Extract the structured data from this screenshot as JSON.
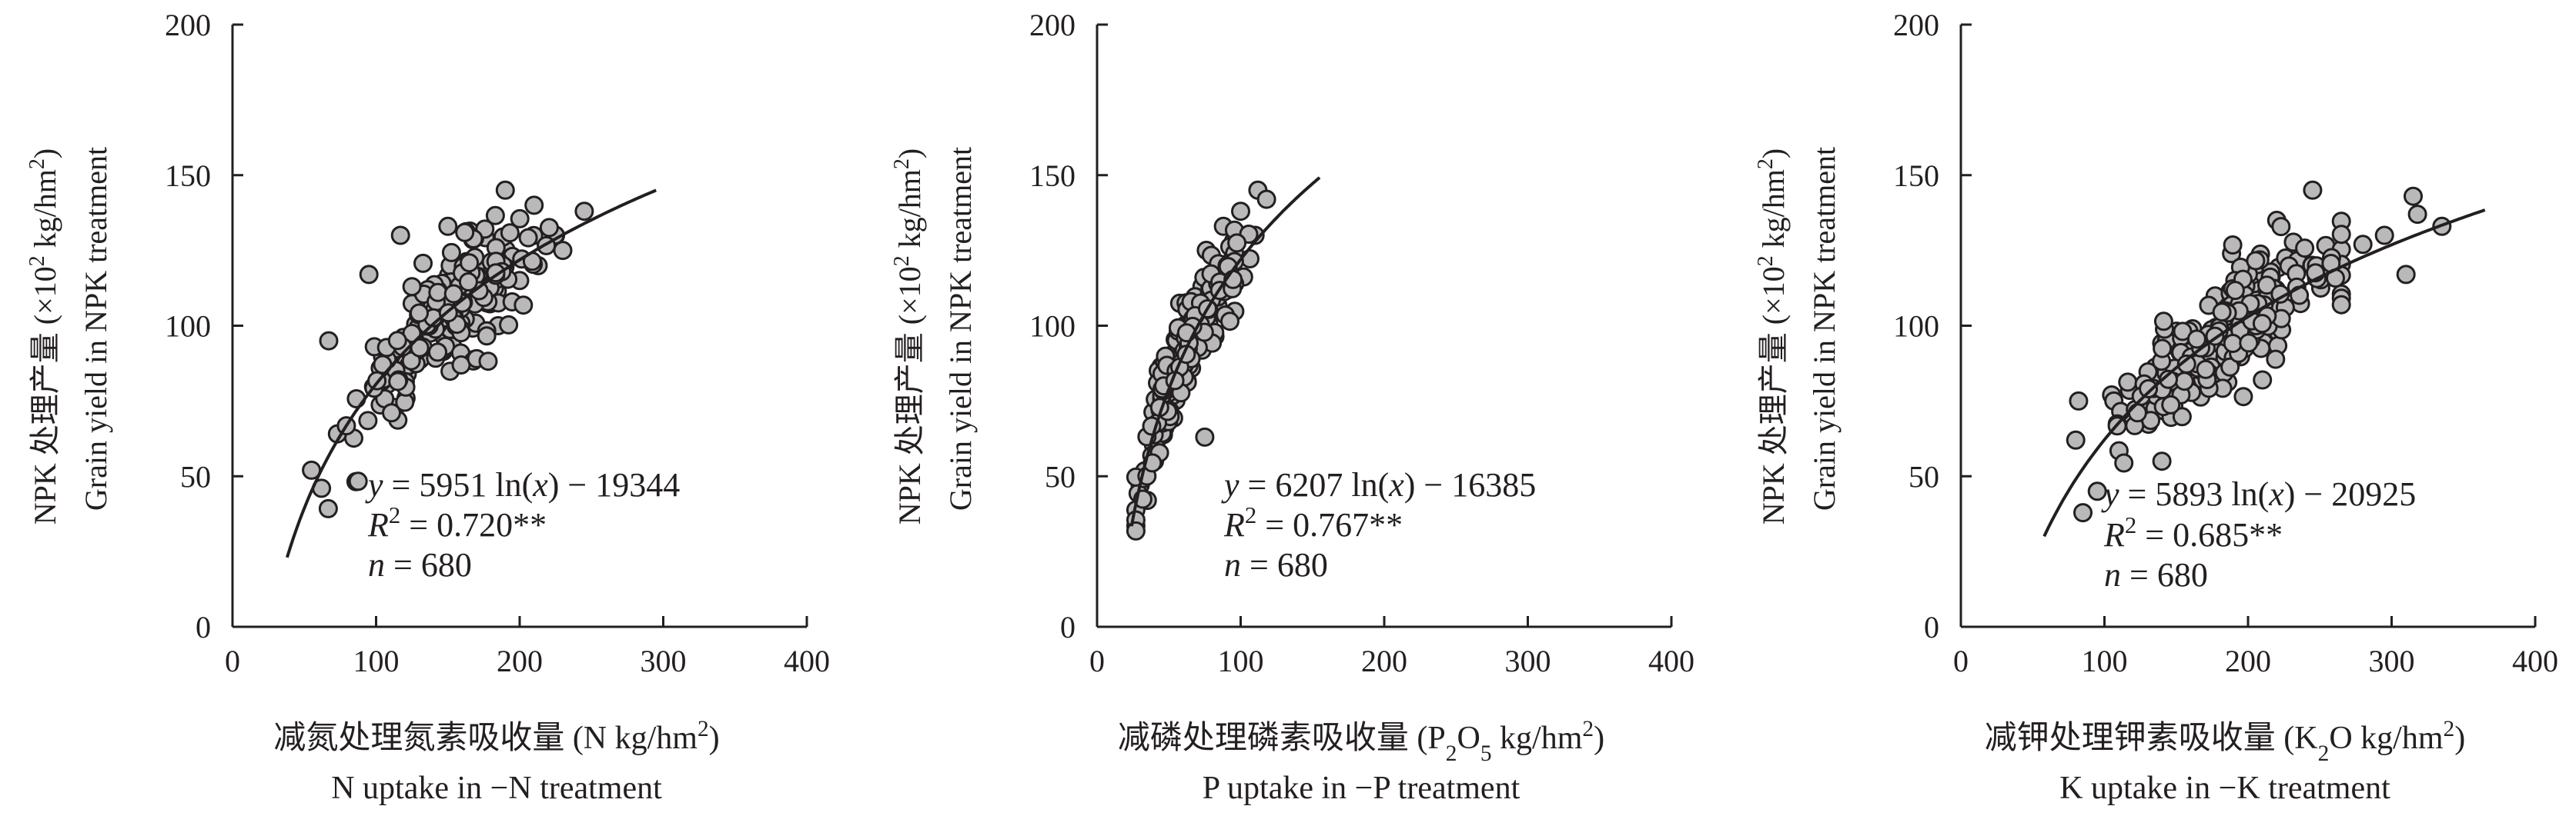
{
  "chart_data": [
    {
      "type": "scatter",
      "id": "N",
      "ylabel_cn": "NPK 处理产量 (×10² kg/hm²)",
      "ylabel_en": "Grain yield in NPK treatment",
      "xlabel_cn": "减氮处理氮素吸收量 (N kg/hm²)",
      "xlabel_en": "N uptake in −N treatment",
      "xlim": [
        0,
        400
      ],
      "ylim": [
        0,
        200
      ],
      "xticks": [
        "0",
        "100",
        "200",
        "300",
        "400"
      ],
      "yticks": [
        "0",
        "50",
        "100",
        "150",
        "200"
      ],
      "equation": "y = 5951 ln(x) − 19344",
      "r2": "R² = 0.720**",
      "n": "n = 680",
      "fit": {
        "a": 59.51,
        "b": -193.44,
        "xmin": 38,
        "xmax": 295
      },
      "cloud": {
        "xmin": 55,
        "xmax": 250,
        "center_x": 150,
        "sd_x": 32,
        "sd_y": 8.5,
        "count": 230
      },
      "points": [
        [
          117,
          130
        ],
        [
          95,
          117
        ],
        [
          108,
          90
        ],
        [
          67,
          95
        ],
        [
          190,
          145
        ],
        [
          210,
          140
        ],
        [
          245,
          138
        ],
        [
          230,
          125
        ],
        [
          200,
          115
        ],
        [
          55,
          52
        ],
        [
          62,
          46
        ],
        [
          150,
          133
        ],
        [
          225,
          130
        ],
        [
          185,
          100
        ]
      ]
    },
    {
      "type": "scatter",
      "id": "P",
      "ylabel_cn": "NPK 处理产量 (×10² kg/hm²)",
      "ylabel_en": "Grain yield in NPK treatment",
      "xlabel_cn": "减磷处理磷素吸收量 (P₂O₅ kg/hm²)",
      "xlabel_en": "P uptake in −P treatment",
      "xlim": [
        0,
        400
      ],
      "ylim": [
        0,
        200
      ],
      "xticks": [
        "0",
        "100",
        "200",
        "300",
        "400"
      ],
      "yticks": [
        "0",
        "50",
        "100",
        "150",
        "200"
      ],
      "equation": "y = 6207 ln(x) − 16385",
      "r2": "R² = 0.767**",
      "n": "n = 680",
      "fit": {
        "a": 62.07,
        "b": -163.85,
        "xmin": 24,
        "xmax": 155
      },
      "cloud": {
        "xmin": 27,
        "xmax": 115,
        "center_x": 65,
        "sd_x": 17,
        "sd_y": 7.5,
        "count": 240
      },
      "points": [
        [
          112,
          145
        ],
        [
          118,
          142
        ],
        [
          100,
          138
        ],
        [
          88,
          133
        ],
        [
          75,
          63
        ],
        [
          30,
          47
        ],
        [
          35,
          42
        ],
        [
          40,
          55
        ],
        [
          110,
          130
        ],
        [
          95,
          128
        ]
      ]
    },
    {
      "type": "scatter",
      "id": "K",
      "ylabel_cn": "NPK 处理产量 (×10² kg/hm²)",
      "ylabel_en": "Grain yield in NPK treatment",
      "xlabel_cn": "减钾处理钾素吸收量 (K₂O kg/hm²)",
      "xlabel_en": "K uptake in −K treatment",
      "xlim": [
        0,
        400
      ],
      "ylim": [
        0,
        200
      ],
      "xticks": [
        "0",
        "100",
        "200",
        "300",
        "400"
      ],
      "yticks": [
        "0",
        "50",
        "100",
        "150",
        "200"
      ],
      "equation": "y = 5893 ln(x) − 20925",
      "r2": "R² = 0.685**",
      "n": "n = 680",
      "fit": {
        "a": 58.93,
        "b": -209.25,
        "xmin": 58,
        "xmax": 365
      },
      "cloud": {
        "xmin": 85,
        "xmax": 265,
        "center_x": 180,
        "sd_x": 38,
        "sd_y": 9,
        "count": 240
      },
      "points": [
        [
          82,
          75
        ],
        [
          105,
          77
        ],
        [
          80,
          62
        ],
        [
          95,
          45
        ],
        [
          245,
          145
        ],
        [
          315,
          143
        ],
        [
          318,
          137
        ],
        [
          335,
          133
        ],
        [
          310,
          117
        ],
        [
          295,
          130
        ],
        [
          280,
          127
        ],
        [
          220,
          135
        ],
        [
          210,
          82
        ],
        [
          140,
          55
        ]
      ]
    }
  ]
}
